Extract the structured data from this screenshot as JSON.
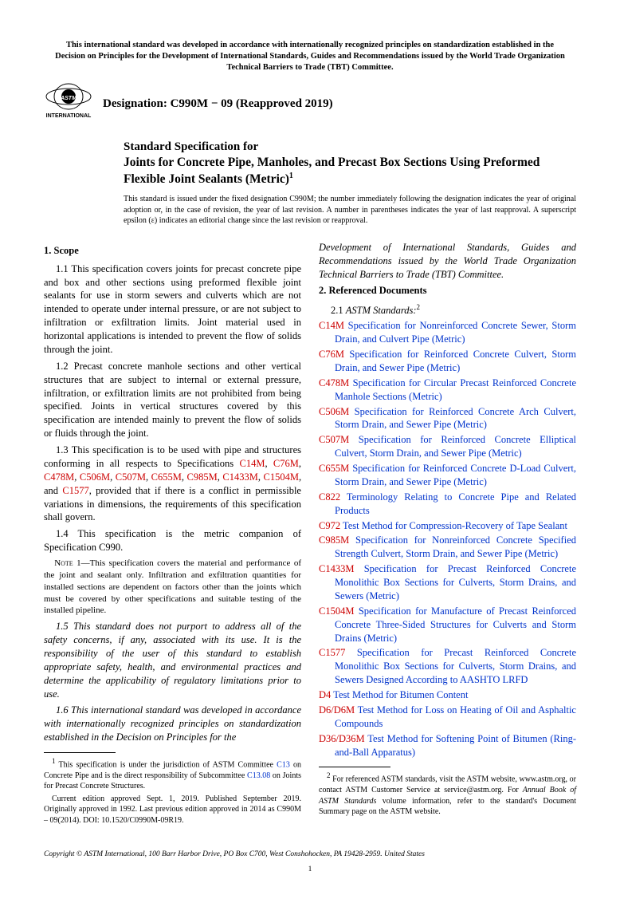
{
  "wto_notice": "This international standard was developed in accordance with internationally recognized principles on standardization established in the Decision on Principles for the Development of International Standards, Guides and Recommendations issued by the World Trade Organization Technical Barriers to Trade (TBT) Committee.",
  "logo_alt": "ASTM INTERNATIONAL",
  "designation": "Designation: C990M − 09 (Reapproved 2019)",
  "title_lead": "Standard Specification for",
  "title_main": "Joints for Concrete Pipe, Manholes, and Precast Box Sections Using Preformed Flexible Joint Sealants (Metric)",
  "title_sup": "1",
  "issuance": "This standard is issued under the fixed designation C990M; the number immediately following the designation indicates the year of original adoption or, in the case of revision, the year of last revision. A number in parentheses indicates the year of last reapproval. A superscript epsilon (ε) indicates an editorial change since the last revision or reapproval.",
  "scope_head": "1. Scope",
  "p11": "1.1 This specification covers joints for precast concrete pipe and box and other sections using preformed flexible joint sealants for use in storm sewers and culverts which are not intended to operate under internal pressure, or are not subject to infiltration or exfiltration limits. Joint material used in horizontal applications is intended to prevent the flow of solids through the joint.",
  "p12": "1.2 Precast concrete manhole sections and other vertical structures that are subject to internal or external pressure, infiltration, or exfiltration limits are not prohibited from being specified. Joints in vertical structures covered by this specification are intended mainly to prevent the flow of solids or fluids through the joint.",
  "p13_pre": "1.3 This specification is to be used with pipe and structures conforming in all respects to Specifications ",
  "p13_refs": [
    "C14M",
    "C76M",
    "C478M",
    "C506M",
    "C507M",
    "C655M",
    "C985M",
    "C1433M",
    "C1504M",
    "C1577"
  ],
  "p13_post": ", provided that if there is a conflict in permissible variations in dimensions, the requirements of this specification shall govern.",
  "p14": "1.4 This specification is the metric companion of Specification C990.",
  "note1_label": "Note 1—",
  "note1": "This specification covers the material and performance of the joint and sealant only. Infiltration and exfiltration quantities for installed sections are dependent on factors other than the joints which must be covered by other specifications and suitable testing of the installed pipeline.",
  "p15": "1.5 This standard does not purport to address all of the safety concerns, if any, associated with its use. It is the responsibility of the user of this standard to establish appropriate safety, health, and environmental practices and determine the applicability of regulatory limitations prior to use.",
  "p16": "1.6 This international standard was developed in accordance with internationally recognized principles on standardization established in the Decision on Principles for the ",
  "p16_cont": "Development of International Standards, Guides and Recommendations issued by the World Trade Organization Technical Barriers to Trade (TBT) Committee.",
  "refdocs_head": "2. Referenced Documents",
  "astm_std_head_pre": "2.1 ",
  "astm_std_head": "ASTM Standards:",
  "astm_std_sup": "2",
  "refs": [
    {
      "code": "C14M",
      "title": "Specification for Nonreinforced Concrete Sewer, Storm Drain, and Culvert Pipe (Metric)"
    },
    {
      "code": "C76M",
      "title": "Specification for Reinforced Concrete Culvert, Storm Drain, and Sewer Pipe (Metric)"
    },
    {
      "code": "C478M",
      "title": "Specification for Circular Precast Reinforced Concrete Manhole Sections (Metric)"
    },
    {
      "code": "C506M",
      "title": "Specification for Reinforced Concrete Arch Culvert, Storm Drain, and Sewer Pipe (Metric)"
    },
    {
      "code": "C507M",
      "title": "Specification for Reinforced Concrete Elliptical Culvert, Storm Drain, and Sewer Pipe (Metric)"
    },
    {
      "code": "C655M",
      "title": "Specification for Reinforced Concrete D-Load Culvert, Storm Drain, and Sewer Pipe (Metric)"
    },
    {
      "code": "C822",
      "title": "Terminology Relating to Concrete Pipe and Related Products"
    },
    {
      "code": "C972",
      "title": "Test Method for Compression-Recovery of Tape Sealant"
    },
    {
      "code": "C985M",
      "title": "Specification for Nonreinforced Concrete Specified Strength Culvert, Storm Drain, and Sewer Pipe (Metric)"
    },
    {
      "code": "C1433M",
      "title": "Specification for Precast Reinforced Concrete Monolithic Box Sections for Culverts, Storm Drains, and Sewers (Metric)"
    },
    {
      "code": "C1504M",
      "title": "Specification for Manufacture of Precast Reinforced Concrete Three-Sided Structures for Culverts and Storm Drains (Metric)"
    },
    {
      "code": "C1577",
      "title": "Specification for Precast Reinforced Concrete Monolithic Box Sections for Culverts, Storm Drains, and Sewers Designed According to AASHTO LRFD"
    },
    {
      "code": "D4",
      "title": "Test Method for Bitumen Content"
    },
    {
      "code": "D6/D6M",
      "title": "Test Method for Loss on Heating of Oil and Asphaltic Compounds"
    },
    {
      "code": "D36/D36M",
      "title": "Test Method for Softening Point of Bitumen (Ring-and-Ball Apparatus)"
    }
  ],
  "fn1_sup": "1",
  "fn1a_pre": " This specification is under the jurisdiction of ASTM Committee ",
  "fn1a_link1": "C13",
  "fn1a_mid": " on Concrete Pipe and is the direct responsibility of Subcommittee ",
  "fn1a_link2": "C13.08",
  "fn1a_post": " on Joints for Precast Concrete Structures.",
  "fn1b": "Current edition approved Sept. 1, 2019. Published September 2019. Originally approved in 1992. Last previous edition approved in 2014 as C990M – 09(2014). DOI: 10.1520/C0990M-09R19.",
  "fn2_sup": "2",
  "fn2_pre": " For referenced ASTM standards, visit the ASTM website, www.astm.org, or contact ASTM Customer Service at service@astm.org. For ",
  "fn2_ital": "Annual Book of ASTM Standards",
  "fn2_post": " volume information, refer to the standard's Document Summary page on the ASTM website.",
  "copyright": "Copyright © ASTM International, 100 Barr Harbor Drive, PO Box C700, West Conshohocken, PA 19428-2959. United States",
  "pagenum": "1"
}
